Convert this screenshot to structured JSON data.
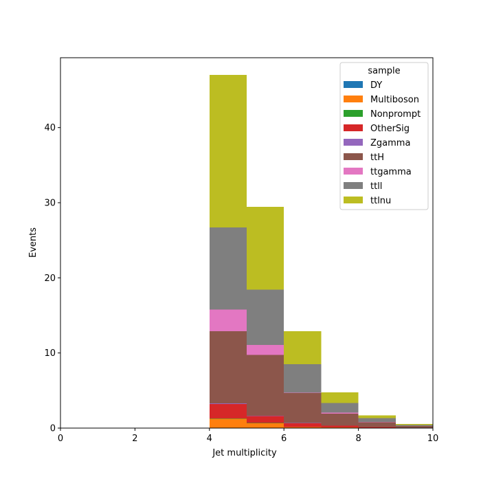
{
  "chart_data": {
    "type": "bar",
    "stacked": true,
    "x_bin_edges": [
      4,
      5,
      6,
      7,
      8,
      9,
      10
    ],
    "xlabel": "Jet multiplicity",
    "ylabel": "Events",
    "xlim": [
      0,
      10
    ],
    "ylim": [
      0,
      49.3
    ],
    "x_ticks": [
      0,
      2,
      4,
      6,
      8,
      10
    ],
    "y_ticks": [
      0,
      10,
      20,
      30,
      40
    ],
    "legend": {
      "title": "sample",
      "placement": "top-right"
    },
    "series": [
      {
        "name": "DY",
        "color": "#1f77b4",
        "values": [
          0.05,
          0.05,
          0.03,
          0.02,
          0.01,
          0.0
        ]
      },
      {
        "name": "Multiboson",
        "color": "#ff7f0e",
        "values": [
          1.2,
          0.6,
          0.1,
          0.05,
          0.02,
          0.01
        ]
      },
      {
        "name": "Nonprompt",
        "color": "#2ca02c",
        "values": [
          0.05,
          0.05,
          0.02,
          0.01,
          0.0,
          0.0
        ]
      },
      {
        "name": "OtherSig",
        "color": "#d62728",
        "values": [
          1.9,
          0.9,
          0.5,
          0.25,
          0.1,
          0.05
        ]
      },
      {
        "name": "Zgamma",
        "color": "#9467bd",
        "values": [
          0.1,
          0.05,
          0.02,
          0.01,
          0.0,
          0.0
        ]
      },
      {
        "name": "ttH",
        "color": "#8c564b",
        "values": [
          9.6,
          8.1,
          4.0,
          1.6,
          0.65,
          0.2
        ]
      },
      {
        "name": "ttgamma",
        "color": "#e377c2",
        "values": [
          2.9,
          1.3,
          0.03,
          0.1,
          0.05,
          0.02
        ]
      },
      {
        "name": "ttll",
        "color": "#7f7f7f",
        "values": [
          10.9,
          7.4,
          3.8,
          1.3,
          0.5,
          0.15
        ]
      },
      {
        "name": "ttlnu",
        "color": "#bcbd22",
        "values": [
          20.3,
          11.0,
          4.4,
          1.4,
          0.35,
          0.1
        ]
      }
    ]
  }
}
